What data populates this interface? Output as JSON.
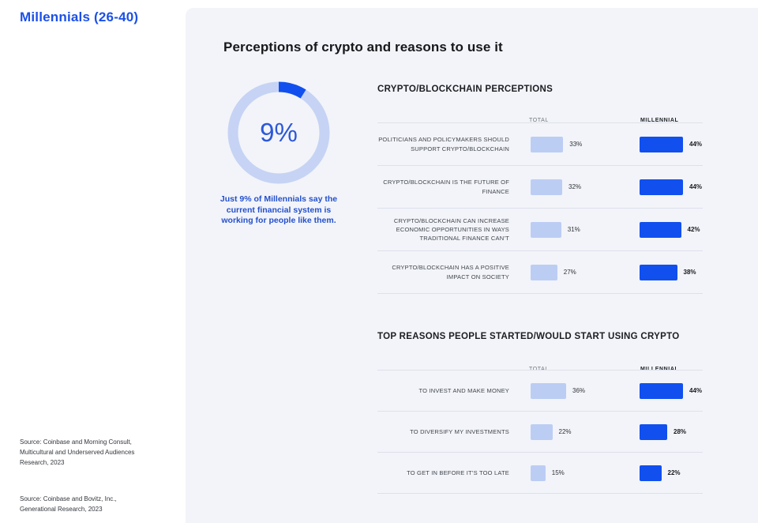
{
  "sidebar": {
    "title": "Millennials (26-40)",
    "sources": [
      "Source: Coinbase and Morning Consult, Multicultural and Underserved Audiences Research, 2023",
      "Source: Coinbase and Bovitz, Inc., Generational Research, 2023"
    ]
  },
  "panel": {
    "title": "Perceptions of crypto and reasons to use it",
    "donut": {
      "center_label": "9%",
      "caption": "Just 9% of Millennials say the current financial system is working for people like them."
    }
  },
  "colors": {
    "accent_blue": "#1150ef",
    "light_bar_blue": "#bccdf4",
    "donut_ring_blue": "#c6d3f4",
    "text_blue": "#2c58d8",
    "heading_blue": "#1b50e8",
    "panel_background": "#f2f4f9",
    "dark_text": "#17181c"
  },
  "chart_data": [
    {
      "type": "pie",
      "title": "Just 9% of Millennials say the current financial system is working for people like them.",
      "labels": [
        "Millennials who say the current financial system is working for people like them",
        "Other"
      ],
      "values": [
        9,
        91
      ],
      "center_label": "9%"
    },
    {
      "type": "bar",
      "title": "CRYPTO/BLOCKCHAIN PERCEPTIONS",
      "categories": [
        "POLITICIANS AND POLICYMAKERS SHOULD SUPPORT CRYPTO/BLOCKCHAIN",
        "CRYPTO/BLOCKCHAIN IS THE FUTURE OF FINANCE",
        "CRYPTO/BLOCKCHAIN CAN INCREASE ECONOMIC OPPORTUNITIES IN WAYS TRADITIONAL FINANCE CAN’T",
        "CRYPTO/BLOCKCHAIN HAS A POSITIVE IMPACT ON SOCIETY"
      ],
      "series": [
        {
          "name": "TOTAL",
          "values": [
            33,
            32,
            31,
            27
          ]
        },
        {
          "name": "MILLENNIAL",
          "values": [
            44,
            44,
            42,
            38
          ]
        }
      ],
      "unit": "%"
    },
    {
      "type": "bar",
      "title": "TOP REASONS PEOPLE STARTED/WOULD START USING CRYPTO",
      "categories": [
        "TO INVEST AND MAKE MONEY",
        "TO DIVERSIFY MY INVESTMENTS",
        "TO GET IN BEFORE IT’S TOO LATE"
      ],
      "series": [
        {
          "name": "TOTAL",
          "values": [
            36,
            22,
            15
          ]
        },
        {
          "name": "MILLENNIAL",
          "values": [
            44,
            28,
            22
          ]
        }
      ],
      "unit": "%"
    }
  ]
}
